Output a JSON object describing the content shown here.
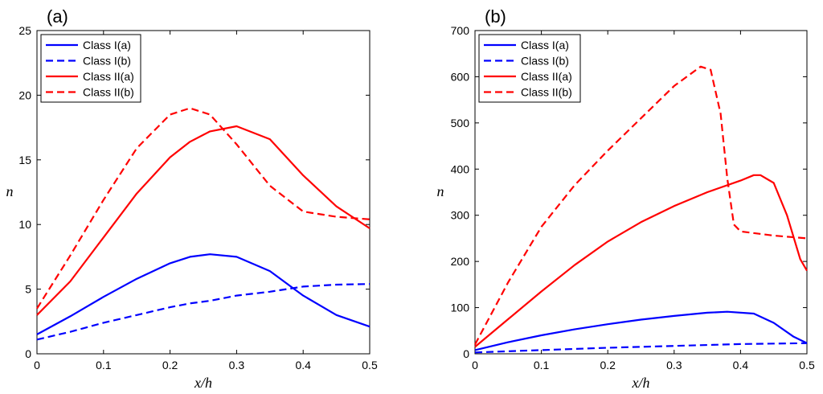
{
  "chart_data": [
    {
      "type": "line",
      "panel_label": "(a)",
      "xlabel": "x/h",
      "ylabel": "n",
      "xlim": [
        0,
        0.5
      ],
      "ylim": [
        0,
        25
      ],
      "xticks": [
        "0",
        "0.1",
        "0.2",
        "0.3",
        "0.4",
        "0.5"
      ],
      "yticks": [
        "0",
        "5",
        "10",
        "15",
        "20",
        "25"
      ],
      "x": [
        0,
        0.05,
        0.1,
        0.15,
        0.2,
        0.23,
        0.26,
        0.3,
        0.35,
        0.4,
        0.45,
        0.5
      ],
      "series": [
        {
          "name": "Class I(a)",
          "color": "#0000ff",
          "dash": "solid",
          "values": [
            1.5,
            2.9,
            4.4,
            5.8,
            7.0,
            7.5,
            7.7,
            7.5,
            6.4,
            4.5,
            3.0,
            2.1
          ]
        },
        {
          "name": "Class I(b)",
          "color": "#0000ff",
          "dash": "dashed",
          "values": [
            1.1,
            1.7,
            2.4,
            3.0,
            3.6,
            3.9,
            4.1,
            4.5,
            4.8,
            5.2,
            5.35,
            5.4
          ]
        },
        {
          "name": "Class II(a)",
          "color": "#ff0000",
          "dash": "solid",
          "values": [
            3.0,
            5.6,
            9.0,
            12.4,
            15.2,
            16.4,
            17.2,
            17.6,
            16.6,
            13.8,
            11.4,
            9.7
          ]
        },
        {
          "name": "Class II(b)",
          "color": "#ff0000",
          "dash": "dashed",
          "values": [
            3.5,
            7.6,
            11.9,
            15.9,
            18.5,
            19.0,
            18.5,
            16.2,
            13.0,
            11.0,
            10.6,
            10.4
          ]
        }
      ]
    },
    {
      "type": "line",
      "panel_label": "(b)",
      "xlabel": "x/h",
      "ylabel": "n",
      "xlim": [
        0,
        0.5
      ],
      "ylim": [
        0,
        700
      ],
      "xticks": [
        "0",
        "0.1",
        "0.2",
        "0.3",
        "0.4",
        "0.5"
      ],
      "yticks": [
        "0",
        "100",
        "200",
        "300",
        "400",
        "500",
        "600",
        "700"
      ],
      "series": [
        {
          "name": "Class I(a)",
          "color": "#0000ff",
          "dash": "solid",
          "x": [
            0,
            0.05,
            0.1,
            0.15,
            0.2,
            0.25,
            0.3,
            0.35,
            0.38,
            0.42,
            0.45,
            0.48,
            0.5
          ],
          "values": [
            8,
            25,
            40,
            53,
            64,
            74,
            82,
            89,
            91,
            87,
            67,
            37,
            23
          ]
        },
        {
          "name": "Class I(b)",
          "color": "#0000ff",
          "dash": "dashed",
          "x": [
            0,
            0.1,
            0.2,
            0.3,
            0.4,
            0.5
          ],
          "values": [
            3,
            8,
            13,
            17,
            21,
            23
          ]
        },
        {
          "name": "Class II(a)",
          "color": "#ff0000",
          "dash": "solid",
          "x": [
            0,
            0.05,
            0.1,
            0.15,
            0.2,
            0.25,
            0.3,
            0.35,
            0.4,
            0.42,
            0.43,
            0.45,
            0.47,
            0.49,
            0.5
          ],
          "values": [
            15,
            75,
            135,
            192,
            243,
            285,
            320,
            350,
            375,
            387,
            387,
            370,
            300,
            205,
            180
          ]
        },
        {
          "name": "Class II(b)",
          "color": "#ff0000",
          "dash": "dashed",
          "x": [
            0,
            0.05,
            0.1,
            0.15,
            0.2,
            0.25,
            0.3,
            0.34,
            0.355,
            0.37,
            0.38,
            0.39,
            0.4,
            0.45,
            0.5
          ],
          "values": [
            20,
            155,
            275,
            365,
            440,
            510,
            580,
            622,
            615,
            520,
            380,
            280,
            265,
            256,
            250
          ]
        }
      ]
    }
  ]
}
